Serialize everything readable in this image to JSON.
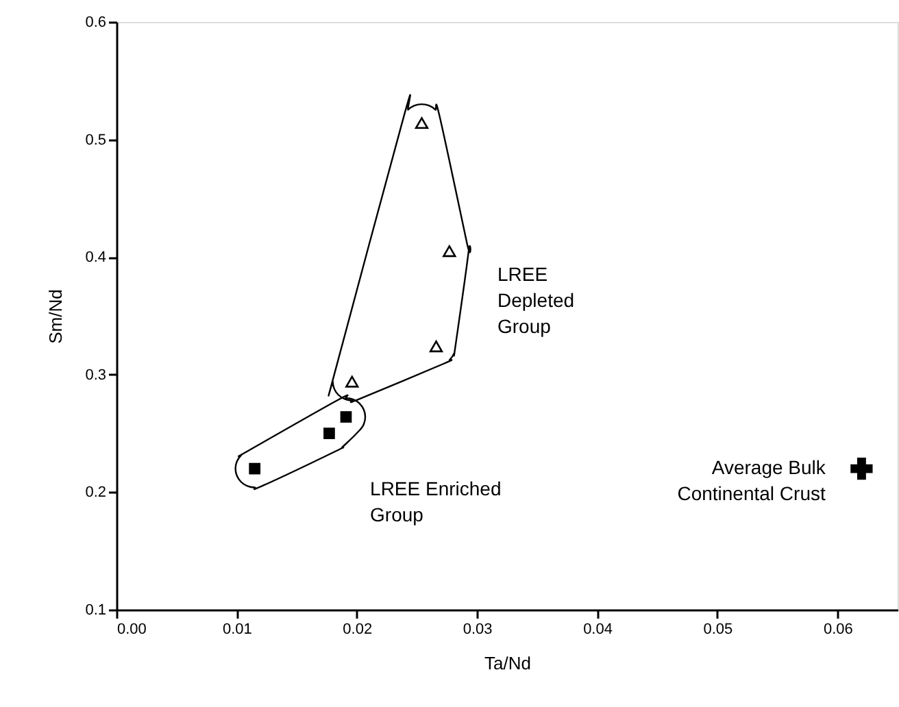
{
  "chart_data": {
    "type": "scatter",
    "xlabel": "Ta/Nd",
    "ylabel": "Sm/Nd",
    "xlim": [
      0,
      0.065
    ],
    "xticks": [
      {
        "value": 0,
        "label": "0.00"
      },
      0.01,
      0.02,
      0.03,
      0.04,
      0.05,
      0.06
    ],
    "ylim": [
      0.1,
      0.6
    ],
    "yticks": [
      0.1,
      0.2,
      0.3,
      0.4,
      0.5,
      0.6
    ],
    "grid": false,
    "series": [
      {
        "name": "LREE Enriched Group",
        "color": "#000000",
        "marker": "square",
        "x": [
          0.0115,
          0.0177,
          0.0191
        ],
        "values": [
          0.22,
          0.25,
          0.264
        ]
      },
      {
        "name": "LREE Depleted Group",
        "color": "#000000",
        "marker": "triangle",
        "x": [
          0.0196,
          0.0254,
          0.0277,
          0.0266
        ],
        "values": [
          0.294,
          0.514,
          0.405,
          0.324
        ]
      },
      {
        "name": "Average Bulk Continental Crust",
        "color": "#000000",
        "marker": "cross",
        "x": [
          0.062
        ],
        "values": [
          0.22
        ]
      }
    ]
  }
}
